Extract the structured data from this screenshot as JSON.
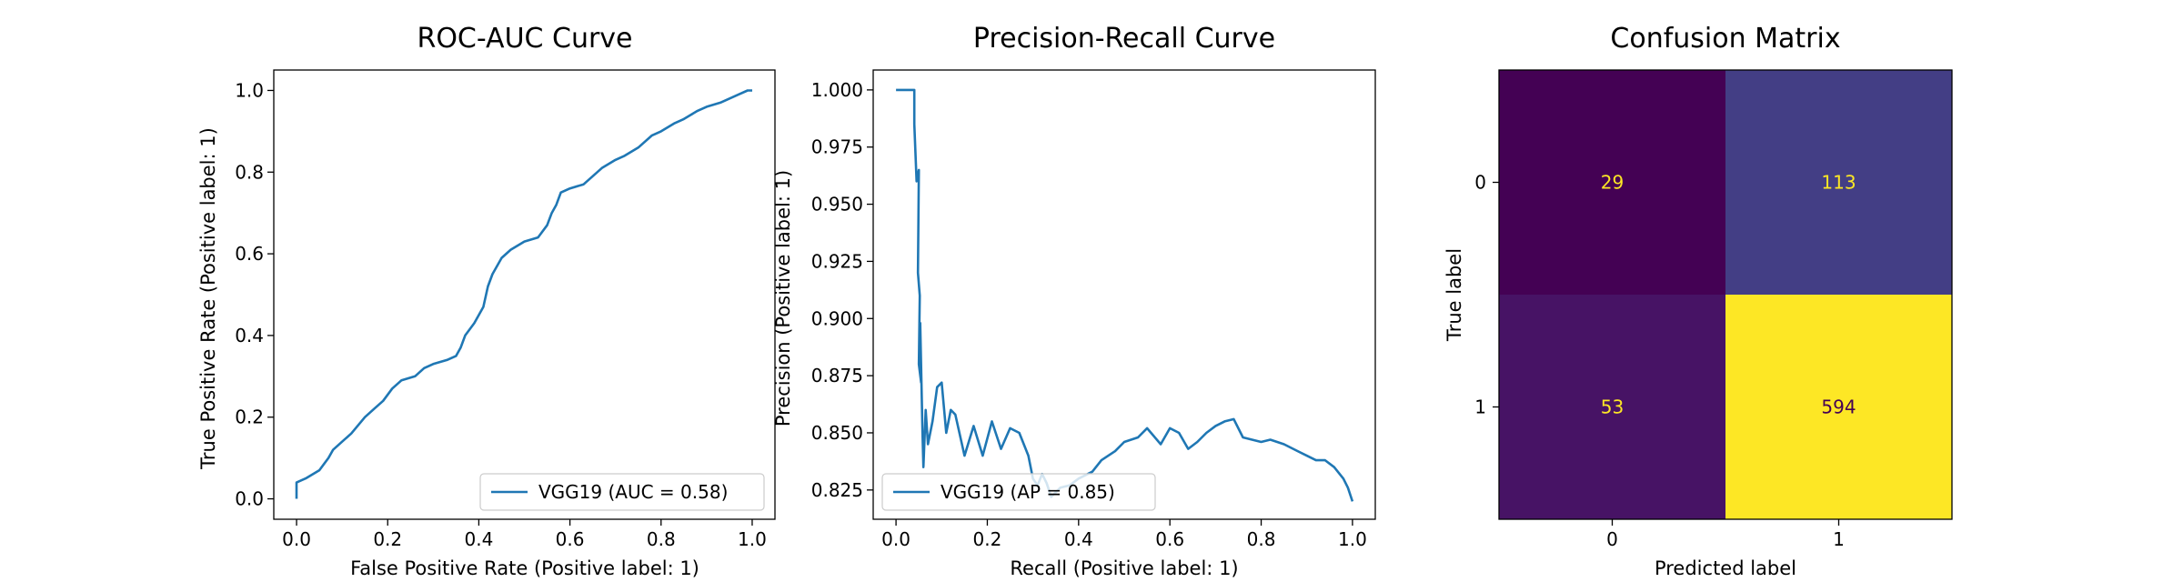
{
  "chart_data": [
    {
      "type": "line",
      "title": "ROC-AUC Curve",
      "xlabel": "False Positive Rate (Positive label: 1)",
      "ylabel": "True Positive Rate (Positive label: 1)",
      "xlim": [
        -0.05,
        1.05
      ],
      "ylim": [
        -0.05,
        1.05
      ],
      "xticks": [
        "0.0",
        "0.2",
        "0.4",
        "0.6",
        "0.8",
        "1.0"
      ],
      "yticks": [
        "0.0",
        "0.2",
        "0.4",
        "0.6",
        "0.8",
        "1.0"
      ],
      "legend": {
        "position": "lower-right",
        "label": "VGG19 (AUC = 0.58)"
      },
      "color": "#1f77b4",
      "series": [
        {
          "name": "VGG19 (AUC = 0.58)",
          "x": [
            0.0,
            0.0,
            0.02,
            0.05,
            0.07,
            0.08,
            0.1,
            0.12,
            0.15,
            0.17,
            0.19,
            0.21,
            0.23,
            0.26,
            0.28,
            0.3,
            0.33,
            0.35,
            0.36,
            0.37,
            0.39,
            0.41,
            0.42,
            0.43,
            0.45,
            0.47,
            0.5,
            0.53,
            0.55,
            0.56,
            0.57,
            0.58,
            0.6,
            0.63,
            0.65,
            0.67,
            0.7,
            0.72,
            0.75,
            0.78,
            0.8,
            0.83,
            0.85,
            0.88,
            0.9,
            0.93,
            0.95,
            0.97,
            0.99,
            1.0
          ],
          "y": [
            0.0,
            0.04,
            0.05,
            0.07,
            0.1,
            0.12,
            0.14,
            0.16,
            0.2,
            0.22,
            0.24,
            0.27,
            0.29,
            0.3,
            0.32,
            0.33,
            0.34,
            0.35,
            0.37,
            0.4,
            0.43,
            0.47,
            0.52,
            0.55,
            0.59,
            0.61,
            0.63,
            0.64,
            0.67,
            0.7,
            0.72,
            0.75,
            0.76,
            0.77,
            0.79,
            0.81,
            0.83,
            0.84,
            0.86,
            0.89,
            0.9,
            0.92,
            0.93,
            0.95,
            0.96,
            0.97,
            0.98,
            0.99,
            1.0,
            1.0
          ]
        }
      ]
    },
    {
      "type": "line",
      "title": "Precision-Recall Curve",
      "xlabel": "Recall (Positive label: 1)",
      "ylabel": "Precision (Positive label: 1)",
      "xlim": [
        -0.05,
        1.05
      ],
      "ylim": [
        0.8122,
        1.0087
      ],
      "xticks": [
        "0.0",
        "0.2",
        "0.4",
        "0.6",
        "0.8",
        "1.0"
      ],
      "yticks": [
        "0.825",
        "0.850",
        "0.875",
        "0.900",
        "0.925",
        "0.950",
        "0.975",
        "1.000"
      ],
      "legend": {
        "position": "lower-left",
        "label": "VGG19 (AP = 0.85)"
      },
      "color": "#1f77b4",
      "series": [
        {
          "name": "VGG19 (AP = 0.85)",
          "x": [
            0.0,
            0.04,
            0.04,
            0.045,
            0.05,
            0.048,
            0.052,
            0.05,
            0.055,
            0.053,
            0.058,
            0.06,
            0.065,
            0.07,
            0.08,
            0.09,
            0.1,
            0.11,
            0.12,
            0.13,
            0.15,
            0.17,
            0.19,
            0.21,
            0.23,
            0.25,
            0.27,
            0.29,
            0.3,
            0.31,
            0.32,
            0.33,
            0.34,
            0.36,
            0.38,
            0.4,
            0.43,
            0.45,
            0.48,
            0.5,
            0.53,
            0.55,
            0.58,
            0.6,
            0.62,
            0.64,
            0.66,
            0.68,
            0.7,
            0.72,
            0.74,
            0.76,
            0.78,
            0.8,
            0.82,
            0.85,
            0.88,
            0.9,
            0.92,
            0.94,
            0.96,
            0.98,
            0.99,
            1.0
          ],
          "y": [
            1.0,
            1.0,
            0.985,
            0.96,
            0.965,
            0.92,
            0.91,
            0.88,
            0.872,
            0.898,
            0.85,
            0.835,
            0.86,
            0.845,
            0.855,
            0.87,
            0.872,
            0.85,
            0.86,
            0.858,
            0.84,
            0.853,
            0.84,
            0.855,
            0.843,
            0.852,
            0.85,
            0.84,
            0.83,
            0.827,
            0.832,
            0.828,
            0.822,
            0.826,
            0.827,
            0.83,
            0.833,
            0.838,
            0.842,
            0.846,
            0.848,
            0.852,
            0.845,
            0.852,
            0.85,
            0.843,
            0.846,
            0.85,
            0.853,
            0.855,
            0.856,
            0.848,
            0.847,
            0.846,
            0.847,
            0.845,
            0.842,
            0.84,
            0.838,
            0.838,
            0.835,
            0.83,
            0.826,
            0.82
          ]
        }
      ]
    },
    {
      "type": "heatmap",
      "title": "Confusion Matrix",
      "xlabel": "Predicted label",
      "ylabel": "True label",
      "x_categories": [
        "0",
        "1"
      ],
      "y_categories": [
        "0",
        "1"
      ],
      "values": [
        [
          29,
          113
        ],
        [
          53,
          594
        ]
      ],
      "colormap": "viridis",
      "colors": [
        [
          "#440154",
          "#433e85"
        ],
        [
          "#471365",
          "#fde725"
        ]
      ],
      "text_colors": [
        [
          "#fde725",
          "#fde725"
        ],
        [
          "#fde725",
          "#440154"
        ]
      ]
    }
  ]
}
